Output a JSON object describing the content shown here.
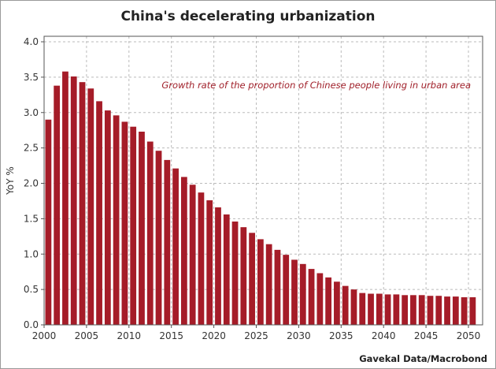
{
  "chart_data": {
    "type": "bar",
    "title": "China's decelerating urbanization",
    "ylabel": "YoY %",
    "xlabel": "",
    "annotation": "Growth rate of the proportion of Chinese people living in urban area",
    "source": "Gavekal Data/Macrobond",
    "ylim": [
      0,
      4.0
    ],
    "xlim": [
      2000,
      2052
    ],
    "yticks": [
      "0.0",
      "0.5",
      "1.0",
      "1.5",
      "2.0",
      "2.5",
      "3.0",
      "3.5",
      "4.0"
    ],
    "xticks": [
      "2000",
      "2005",
      "2010",
      "2015",
      "2020",
      "2025",
      "2030",
      "2035",
      "2040",
      "2045",
      "2050"
    ],
    "grid": true,
    "bar_color": "#a51c28",
    "x": [
      2000,
      2001,
      2002,
      2003,
      2004,
      2005,
      2006,
      2007,
      2008,
      2009,
      2010,
      2011,
      2012,
      2013,
      2014,
      2015,
      2016,
      2017,
      2018,
      2019,
      2020,
      2021,
      2022,
      2023,
      2024,
      2025,
      2026,
      2027,
      2028,
      2029,
      2030,
      2031,
      2032,
      2033,
      2034,
      2035,
      2036,
      2037,
      2038,
      2039,
      2040,
      2041,
      2042,
      2043,
      2044,
      2045,
      2046,
      2047,
      2048,
      2049,
      2050
    ],
    "values": [
      2.9,
      3.38,
      3.58,
      3.51,
      3.43,
      3.34,
      3.16,
      3.03,
      2.96,
      2.87,
      2.8,
      2.73,
      2.59,
      2.46,
      2.33,
      2.21,
      2.09,
      1.98,
      1.87,
      1.76,
      1.66,
      1.56,
      1.46,
      1.38,
      1.3,
      1.21,
      1.14,
      1.06,
      0.99,
      0.92,
      0.86,
      0.79,
      0.73,
      0.67,
      0.61,
      0.55,
      0.5,
      0.45,
      0.44,
      0.44,
      0.43,
      0.43,
      0.42,
      0.42,
      0.42,
      0.41,
      0.41,
      0.4,
      0.4,
      0.39,
      0.39
    ]
  }
}
